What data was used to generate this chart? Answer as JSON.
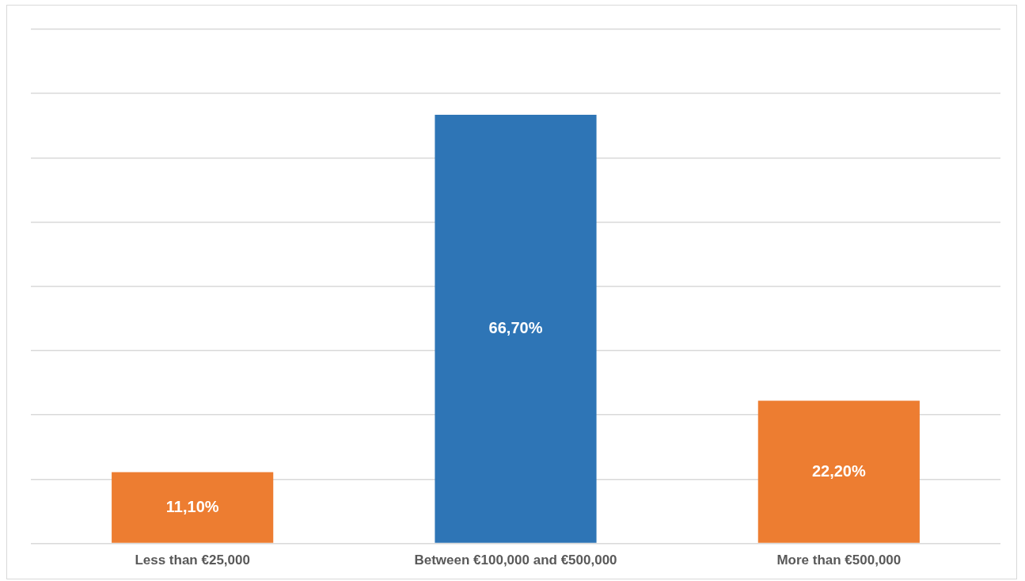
{
  "chart_data": {
    "type": "bar",
    "categories": [
      "Less than €25,000",
      "Between €100,000 and €500,000",
      "More than €500,000"
    ],
    "values": [
      11.1,
      66.7,
      22.2
    ],
    "colors": [
      "#ed7d31",
      "#2e75b6",
      "#ed7d31"
    ],
    "value_labels": [
      "11,10%",
      "66,70%",
      "22,20%"
    ],
    "ylim": [
      0,
      80
    ],
    "yticks": [
      {
        "value": 0,
        "label": null
      },
      {
        "value": 10,
        "label": null
      },
      {
        "value": 20,
        "label": null
      },
      {
        "value": 30,
        "label": null
      },
      {
        "value": 40,
        "label": null
      },
      {
        "value": 50,
        "label": null
      },
      {
        "value": 60,
        "label": null
      },
      {
        "value": 70,
        "label": null
      },
      {
        "value": 80,
        "label": null
      }
    ],
    "tick_labels": "x",
    "grid": "y",
    "legend": false
  }
}
